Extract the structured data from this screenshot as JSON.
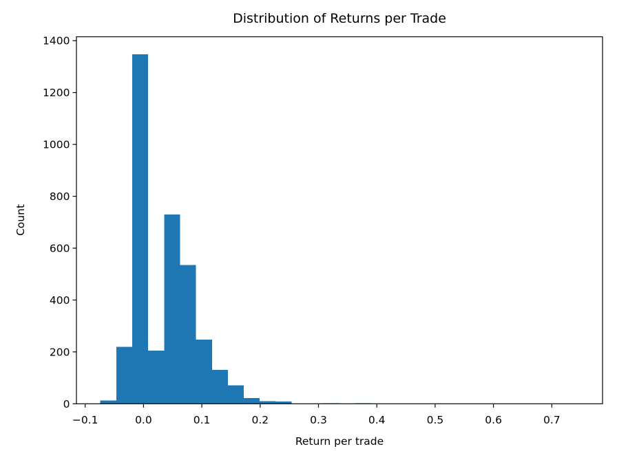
{
  "chart_data": {
    "type": "bar",
    "subtype": "histogram",
    "title": "Distribution of Returns per Trade",
    "xlabel": "Return per trade",
    "ylabel": "Count",
    "bar_color": "#1f77b4",
    "axis_color": "#000000",
    "background_color": "#ffffff",
    "grid": false,
    "legend_position": "none",
    "xlim": [
      -0.115,
      0.787
    ],
    "ylim": [
      0,
      1415
    ],
    "x_tick_values": [
      -0.1,
      0.0,
      0.1,
      0.2,
      0.3,
      0.4,
      0.5,
      0.6,
      0.7
    ],
    "x_tick_labels": [
      "−0.1",
      "0.0",
      "0.1",
      "0.2",
      "0.3",
      "0.4",
      "0.5",
      "0.6",
      "0.7"
    ],
    "y_tick_values": [
      0,
      200,
      400,
      600,
      800,
      1000,
      1200,
      1400
    ],
    "y_tick_labels": [
      "0",
      "200",
      "400",
      "600",
      "800",
      "1000",
      "1200",
      "1400"
    ],
    "bin_edges": [
      -0.074,
      -0.0467,
      -0.0193,
      0.008,
      0.0353,
      0.0627,
      0.09,
      0.1173,
      0.1447,
      0.172,
      0.1993,
      0.2267,
      0.254,
      0.2813,
      0.3087,
      0.336,
      0.3633,
      0.3907,
      0.418,
      0.4453,
      0.4727,
      0.5,
      0.5273,
      0.5547,
      0.582,
      0.6093,
      0.6367,
      0.664,
      0.6913,
      0.7187,
      0.746
    ],
    "counts": [
      13,
      220,
      1347,
      205,
      730,
      535,
      247,
      131,
      71,
      22,
      10,
      9,
      0,
      0,
      2,
      0,
      2,
      0,
      0,
      0,
      0,
      0,
      0,
      0,
      0,
      0,
      0,
      0,
      0,
      1
    ]
  }
}
